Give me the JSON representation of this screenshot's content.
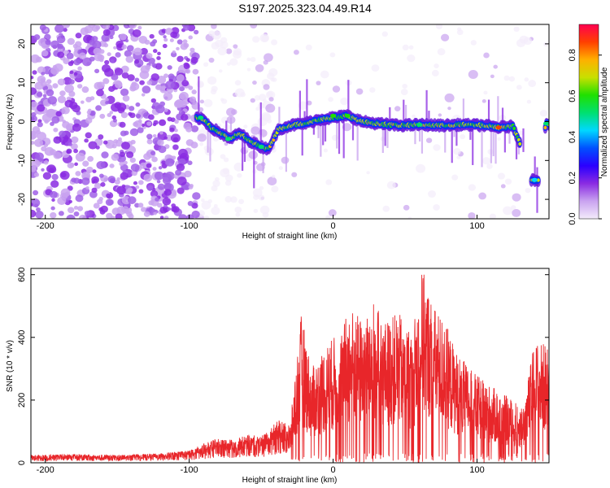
{
  "chart_data": [
    {
      "type": "heatmap",
      "title": "S197.2025.323.04.49.R14",
      "xlabel": "Height of straight line (km)",
      "ylabel": "Frequency (Hz)",
      "xlim": [
        -210,
        150
      ],
      "ylim": [
        -25,
        25
      ],
      "xticks": [
        -200,
        -100,
        0,
        100
      ],
      "yticks": [
        -20,
        -10,
        0,
        10,
        20
      ],
      "colorbar": {
        "label": "Normalized spectral amplitude",
        "range": [
          0.0,
          0.95
        ],
        "ticks": [
          0.0,
          0.2,
          0.4,
          0.6,
          0.8
        ],
        "tick_labels": [
          "0.0",
          "0.2",
          "0.4",
          "0.6",
          "0.8"
        ],
        "colormap": [
          "#f4ecfb",
          "#c9a3f0",
          "#8a2be2",
          "#2a00ff",
          "#0050ff",
          "#00d8ff",
          "#00e070",
          "#20e000",
          "#c8e000",
          "#ffb000",
          "#ff4000",
          "#ff0050"
        ]
      },
      "ridge": [
        {
          "x": -95,
          "f": 1.0
        },
        {
          "x": -90,
          "f": 0.5
        },
        {
          "x": -85,
          "f": -1.5
        },
        {
          "x": -78,
          "f": -3.0
        },
        {
          "x": -72,
          "f": -4.5
        },
        {
          "x": -65,
          "f": -3.0
        },
        {
          "x": -58,
          "f": -5.0
        },
        {
          "x": -50,
          "f": -6.5
        },
        {
          "x": -45,
          "f": -7.0
        },
        {
          "x": -38,
          "f": -2.0
        },
        {
          "x": -30,
          "f": -1.0
        },
        {
          "x": -20,
          "f": -0.5
        },
        {
          "x": -10,
          "f": 0.5
        },
        {
          "x": 0,
          "f": 1.0
        },
        {
          "x": 10,
          "f": 1.5
        },
        {
          "x": 20,
          "f": 0.0
        },
        {
          "x": 30,
          "f": -0.5
        },
        {
          "x": 45,
          "f": -1.0
        },
        {
          "x": 60,
          "f": -0.8
        },
        {
          "x": 75,
          "f": -1.0
        },
        {
          "x": 90,
          "f": -0.8
        },
        {
          "x": 105,
          "f": -1.0
        },
        {
          "x": 115,
          "f": -1.5
        },
        {
          "x": 125,
          "f": -1.2
        },
        {
          "x": 140,
          "f": -15.0
        },
        {
          "x": 148,
          "f": -0.5
        }
      ]
    },
    {
      "type": "line",
      "xlabel": "Height of straight line (km)",
      "ylabel": "SNR (10 * v/v)",
      "xlim": [
        -210,
        150
      ],
      "ylim": [
        0,
        620
      ],
      "xticks": [
        -200,
        -100,
        0,
        100
      ],
      "yticks": [
        0,
        200,
        400,
        600
      ],
      "color": "#e8262a",
      "envelope": [
        {
          "x": -210,
          "y": 25
        },
        {
          "x": -180,
          "y": 28
        },
        {
          "x": -150,
          "y": 25
        },
        {
          "x": -120,
          "y": 30
        },
        {
          "x": -100,
          "y": 40
        },
        {
          "x": -90,
          "y": 60
        },
        {
          "x": -80,
          "y": 80
        },
        {
          "x": -70,
          "y": 75
        },
        {
          "x": -60,
          "y": 90
        },
        {
          "x": -50,
          "y": 85
        },
        {
          "x": -45,
          "y": 100
        },
        {
          "x": -40,
          "y": 130
        },
        {
          "x": -35,
          "y": 140
        },
        {
          "x": -30,
          "y": 120
        },
        {
          "x": -22,
          "y": 480
        },
        {
          "x": -15,
          "y": 300
        },
        {
          "x": -5,
          "y": 380
        },
        {
          "x": 5,
          "y": 420
        },
        {
          "x": 12,
          "y": 500
        },
        {
          "x": 20,
          "y": 460
        },
        {
          "x": 28,
          "y": 520
        },
        {
          "x": 35,
          "y": 450
        },
        {
          "x": 45,
          "y": 480
        },
        {
          "x": 55,
          "y": 420
        },
        {
          "x": 62,
          "y": 620
        },
        {
          "x": 70,
          "y": 500
        },
        {
          "x": 78,
          "y": 450
        },
        {
          "x": 85,
          "y": 360
        },
        {
          "x": 95,
          "y": 300
        },
        {
          "x": 105,
          "y": 260
        },
        {
          "x": 115,
          "y": 230
        },
        {
          "x": 125,
          "y": 200
        },
        {
          "x": 132,
          "y": 180
        },
        {
          "x": 140,
          "y": 390
        },
        {
          "x": 150,
          "y": 380
        }
      ]
    }
  ]
}
